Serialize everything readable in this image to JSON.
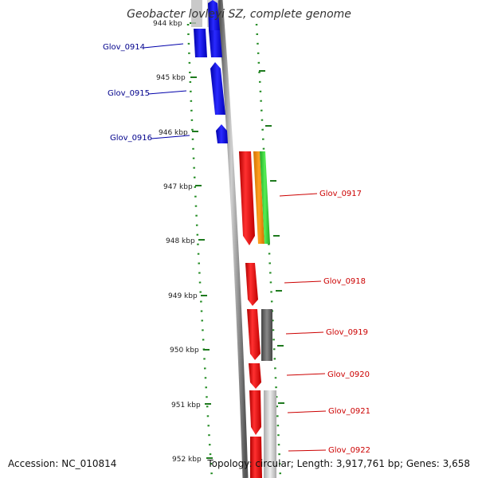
{
  "title": "Geobacter lovleyi SZ, complete genome",
  "footer": {
    "accession": "Accession: NC_010814",
    "topology": "Topology: circular; Length: 3,917,761 bp; Genes: 3,658"
  },
  "ticks": [
    "944 kbp",
    "945 kbp",
    "946 kbp",
    "947 kbp",
    "948 kbp",
    "949 kbp",
    "950 kbp",
    "951 kbp",
    "952 kbp"
  ],
  "genes": [
    {
      "name": "Glov_0914",
      "strand": "minus",
      "color": "#0000ee"
    },
    {
      "name": "Glov_0915",
      "strand": "minus",
      "color": "#0000ee"
    },
    {
      "name": "Glov_0916",
      "strand": "minus",
      "color": "#0000ee"
    },
    {
      "name": "Glov_0917",
      "strand": "plus",
      "color": "#ee0000"
    },
    {
      "name": "Glov_0918",
      "strand": "plus",
      "color": "#ee0000"
    },
    {
      "name": "Glov_0919",
      "strand": "plus",
      "color": "#ee0000"
    },
    {
      "name": "Glov_0920",
      "strand": "plus",
      "color": "#ee0000"
    },
    {
      "name": "Glov_0921",
      "strand": "plus",
      "color": "#ee0000"
    },
    {
      "name": "Glov_0922",
      "strand": "plus",
      "color": "#ee0000"
    }
  ],
  "colors": {
    "backbone": "#8a8a8a",
    "tick_marks": "#228b22",
    "minus_label": "#00008b",
    "plus_label": "#cc0000",
    "orange_feature": "#ff9900",
    "green_feature": "#33cc33",
    "gray_feature": "#666666",
    "light_feature": "#cccccc"
  }
}
